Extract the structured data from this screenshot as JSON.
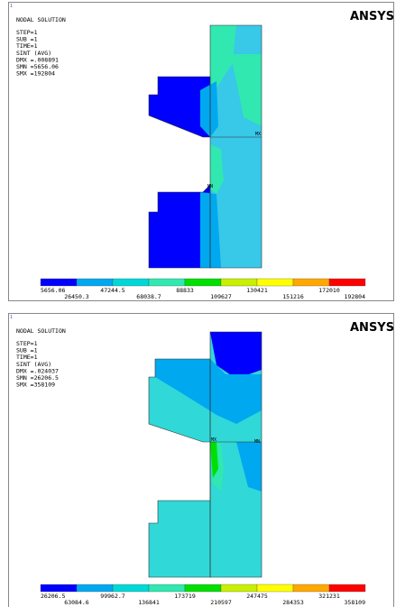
{
  "panels": [
    {
      "index": "1",
      "title": "NODAL SOLUTION",
      "info": [
        "STEP=1",
        "SUB =1",
        "TIME=1",
        "SINT     (AVG)",
        "DMX =.008891",
        "SMN =5656.06",
        "SMX =192804"
      ],
      "logo": "ANSYS",
      "markers": [
        "MX",
        "MN"
      ],
      "legend_top": [
        "5656.06",
        "47244.5",
        "88833",
        "130421",
        "172010"
      ],
      "legend_bottom": [
        "26450.3",
        "68038.7",
        "109627",
        "151216",
        "192804"
      ]
    },
    {
      "index": "1",
      "title": "NODAL SOLUTION",
      "info": [
        "STEP=1",
        "SUB =1",
        "TIME=1",
        "SINT     (AVG)",
        "DMX =.024037",
        "SMN =26206.5",
        "SMX =358109"
      ],
      "logo": "ANSYS",
      "markers": [
        "MX",
        "MN"
      ],
      "legend_top": [
        "26206.5",
        "99962.7",
        "173719",
        "247475",
        "321231"
      ],
      "legend_bottom": [
        "63084.6",
        "136841",
        "210597",
        "284353",
        "358109"
      ]
    }
  ]
}
